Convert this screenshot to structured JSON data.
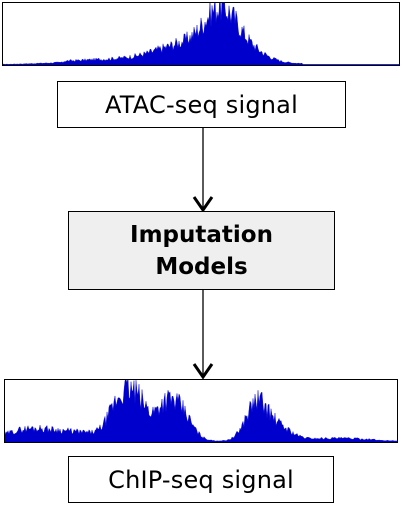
{
  "input": {
    "label": "ATAC-seq signal",
    "color": "#0000cc"
  },
  "model": {
    "line1": "Imputation",
    "line2": "Models",
    "fill": "#efefef"
  },
  "output": {
    "label": "ChIP-seq signal",
    "color": "#0000cc"
  },
  "edges": [
    {
      "from": "ATAC-seq signal",
      "to": "Imputation Models"
    },
    {
      "from": "Imputation Models",
      "to": "ChIP-seq signal"
    }
  ]
}
